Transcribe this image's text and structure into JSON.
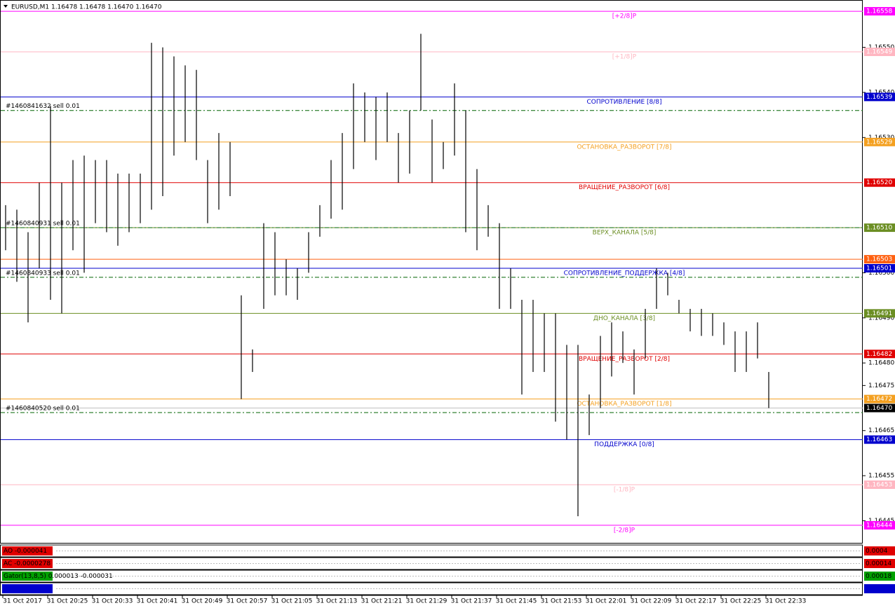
{
  "chart_data": {
    "type": "ohlc",
    "title": "EURUSD,M1  1.16478 1.16478 1.16470 1.16470",
    "ylim": [
      1.164401,
      1.165605
    ],
    "yticks": [
      {
        "value": 1.1655,
        "label": "1.16550"
      },
      {
        "value": 1.1654,
        "label": "1.16540"
      },
      {
        "value": 1.1653,
        "label": "1.16530"
      },
      {
        "value": 1.165,
        "label": "1.16500"
      },
      {
        "value": 1.1649,
        "label": "1.16490"
      },
      {
        "value": 1.1648,
        "label": "1.16480"
      },
      {
        "value": 1.16475,
        "label": "1.16475"
      },
      {
        "value": 1.16465,
        "label": "1.16465"
      },
      {
        "value": 1.16455,
        "label": "1.16455"
      },
      {
        "value": 1.16445,
        "label": "1.16445"
      }
    ],
    "xlabels": [
      "31 Oct 2017",
      "31 Oct 20:25",
      "31 Oct 20:33",
      "31 Oct 20:41",
      "31 Oct 20:49",
      "31 Oct 20:57",
      "31 Oct 21:05",
      "31 Oct 21:13",
      "31 Oct 21:21",
      "31 Oct 21:29",
      "31 Oct 21:37",
      "31 Oct 21:45",
      "31 Oct 21:53",
      "31 Oct 22:01",
      "31 Oct 22:09",
      "31 Oct 22:17",
      "31 Oct 22:25",
      "31 Oct 22:33"
    ],
    "bar_color": "#000000",
    "high": [
      1.16515,
      1.16514,
      1.16509,
      1.1652,
      1.16537,
      1.1652,
      1.16525,
      1.16526,
      1.16525,
      1.16525,
      1.16522,
      1.16522,
      1.16522,
      1.16551,
      1.1655,
      1.16548,
      1.16546,
      1.16545,
      1.16525,
      1.16531,
      1.16529,
      1.16495,
      1.16483,
      1.16511,
      1.16509,
      1.16503,
      1.16501,
      1.16509,
      1.16515,
      1.16525,
      1.16531,
      1.16542,
      1.1654,
      1.16539,
      1.1654,
      1.16531,
      1.16536,
      1.16553,
      1.16534,
      1.16529,
      1.16542,
      1.16536,
      1.16523,
      1.16515,
      1.16511,
      1.16501,
      1.16494,
      1.16494,
      1.16491,
      1.16491,
      1.16484,
      1.16484,
      1.16473,
      1.16486,
      1.16489,
      1.16487,
      1.16483,
      1.16492,
      1.16501,
      1.165,
      1.16494,
      1.16492,
      1.16492,
      1.16491,
      1.16489,
      1.16487,
      1.16487,
      1.16489,
      1.16478
    ],
    "low": [
      1.16505,
      1.16498,
      1.16489,
      1.16501,
      1.16494,
      1.16491,
      1.16505,
      1.165,
      1.16511,
      1.16509,
      1.16506,
      1.16509,
      1.16511,
      1.16514,
      1.16517,
      1.16526,
      1.16529,
      1.16525,
      1.16511,
      1.16514,
      1.16517,
      1.16472,
      1.16478,
      1.16492,
      1.16495,
      1.16495,
      1.16494,
      1.165,
      1.16508,
      1.16512,
      1.16514,
      1.16523,
      1.16529,
      1.16525,
      1.16529,
      1.1652,
      1.16522,
      1.16536,
      1.1652,
      1.16523,
      1.16526,
      1.16509,
      1.16505,
      1.16508,
      1.16492,
      1.16492,
      1.16473,
      1.16478,
      1.16478,
      1.16467,
      1.16463,
      1.16446,
      1.16464,
      1.1647,
      1.16477,
      1.1648,
      1.16473,
      1.16481,
      1.16492,
      1.16495,
      1.16491,
      1.16487,
      1.16486,
      1.16486,
      1.16484,
      1.16478,
      1.16478,
      1.16481,
      1.1647
    ],
    "levels": [
      {
        "label": "[+2/8]P",
        "value": 1.16558,
        "price_label": "1.16558",
        "color": "#ff00ff"
      },
      {
        "label": "[+1/8]P",
        "value": 1.16549,
        "price_label": "1.16549",
        "color": "#ffb6c1"
      },
      {
        "label": "СОПРОТИВЛЕНИЕ [8/8]",
        "value": 1.16539,
        "price_label": "1.16539",
        "color": "#0000cd"
      },
      {
        "label": "ОСТАНОВКА_РАЗВОРОТ [7/8]",
        "value": 1.16529,
        "price_label": "1.16529",
        "color": "#f4a020"
      },
      {
        "label": "ВРАЩЕНИЕ_РАЗВОРОТ [6/8]",
        "value": 1.1652,
        "price_label": "1.16520",
        "color": "#e00000"
      },
      {
        "label": "ВЕРХ_КАНАЛА [5/8]",
        "value": 1.1651,
        "price_label": "1.16510",
        "color": "#6b8e23"
      },
      {
        "value": 1.16503,
        "price_label": "1.16503",
        "color": "#ff6010"
      },
      {
        "label": "СОПРОТИВЛЕНИЕ_ПОДДЕРЖКА [4/8]",
        "value": 1.16501,
        "price_label": "1.16501",
        "color": "#0000cd"
      },
      {
        "label": "ДНО_КАНАЛА [3/8]",
        "value": 1.16491,
        "price_label": "1.16491",
        "color": "#6b8e23"
      },
      {
        "label": "ВРАЩЕНИЕ_РАЗВОРОТ [2/8]",
        "value": 1.16482,
        "price_label": "1.16482",
        "color": "#e00000"
      },
      {
        "label": "ОСТАНОВКА_РАЗВОРОТ [1/8]",
        "value": 1.16472,
        "price_label": "1.16472",
        "color": "#f4a020"
      },
      {
        "value": 1.1647,
        "price_label": "1.16470",
        "color": "#c0c0c0",
        "tag_color": "#000000"
      },
      {
        "label": "ПОДДЕРЖКА [0/8]",
        "value": 1.16463,
        "price_label": "1.16463",
        "color": "#0000cd"
      },
      {
        "label": "[-1/8]P",
        "value": 1.16453,
        "price_label": "1.16453",
        "color": "#ffb6c1"
      },
      {
        "label": "[-2/8]P",
        "value": 1.16444,
        "price_label": "1.16444",
        "color": "#ff00ff"
      }
    ],
    "orders": [
      {
        "label": "#1460841632 sell 0.01",
        "price": 1.16536
      },
      {
        "label": "#1460840931 sell 0.01",
        "price": 1.1651
      },
      {
        "label": "#1460840933 sell 0.01",
        "price": 1.16499
      },
      {
        "label": "#1460840520 sell 0.01",
        "price": 1.16469
      }
    ],
    "order_color": "#006400",
    "panels": [
      {
        "label": "AO -0.000041",
        "color": "#e00000",
        "scale_label": "0.0004"
      },
      {
        "label": "AC -0.0000278",
        "color": "#e00000",
        "scale_label": "0.00014"
      },
      {
        "label": "Gator(13,8,5) 0.000013 -0.000031",
        "color": "#00a000",
        "scale_label": "0.00018"
      },
      {
        "color": "#0000cd"
      }
    ]
  }
}
